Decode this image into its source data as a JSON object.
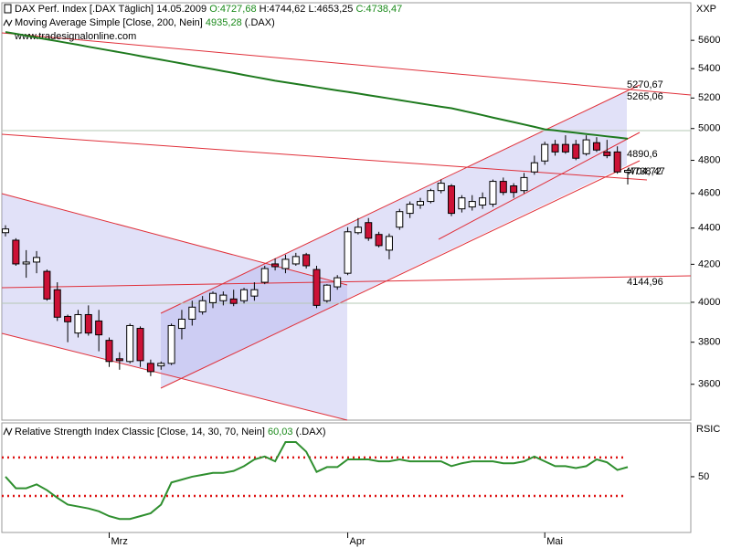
{
  "chart_data": [
    {
      "type": "candlestick",
      "title": "DAX Perf. Index [.DAX  Täglich] 14.05.2009",
      "ohlc_labels": [
        "O:4727,68",
        "H:4744,62",
        "L:4653,25",
        "C:4738,47"
      ],
      "source": "www.tradesignalonline.com",
      "axis_label": "XXP",
      "categories": [
        null,
        null,
        null,
        null,
        null,
        null,
        null,
        null,
        null,
        null,
        "Mrz",
        null,
        null,
        null,
        null,
        null,
        null,
        null,
        null,
        null,
        null,
        null,
        null,
        null,
        null,
        null,
        null,
        null,
        null,
        null,
        null,
        null,
        null,
        "Apr",
        null,
        null,
        null,
        null,
        null,
        null,
        null,
        null,
        null,
        null,
        null,
        null,
        null,
        null,
        null,
        null,
        null,
        null,
        "Mai",
        null,
        null,
        null,
        null,
        null,
        null,
        null,
        null
      ],
      "open": [
        4374,
        4332,
        4202,
        4212,
        4162,
        4065,
        3928,
        3845,
        3937,
        3905,
        3809,
        3720,
        3707,
        3868,
        3698,
        3686,
        3698,
        3868,
        3914,
        3951,
        3998,
        4008,
        4017,
        4008,
        4032,
        4104,
        4202,
        4177,
        4202,
        4252,
        4172,
        4008,
        4080,
        4152,
        4374,
        4431,
        4364,
        4277,
        4405,
        4484,
        4532,
        4553,
        4617,
        4645,
        4510,
        4521,
        4532,
        4537,
        4672,
        4645,
        4617,
        4729,
        4796,
        4899,
        4899,
        4899,
        4841,
        4910,
        4852,
        4852,
        4727.68
      ],
      "high": [
        4416,
        4343,
        4277,
        4272,
        4172,
        4104,
        3937,
        3961,
        3984,
        3961,
        3823,
        3751,
        3892,
        3878,
        3716,
        3707,
        3892,
        3961,
        4008,
        4032,
        4056,
        4056,
        4065,
        4075,
        4104,
        4192,
        4232,
        4252,
        4262,
        4262,
        4192,
        4094,
        4142,
        4405,
        4457,
        4457,
        4379,
        4369,
        4510,
        4553,
        4574,
        4628,
        4683,
        4656,
        4590,
        4590,
        4606,
        4683,
        4695,
        4661,
        4723,
        4829,
        4916,
        4928,
        4957,
        4928,
        4957,
        4945,
        4928,
        4887,
        4744.62
      ],
      "low": [
        4353,
        4192,
        4128,
        4152,
        4008,
        3905,
        3800,
        3823,
        3832,
        3756,
        3681,
        3668,
        3698,
        3681,
        3638,
        3668,
        3690,
        3814,
        3882,
        3937,
        3970,
        3984,
        3980,
        3994,
        4008,
        4094,
        4167,
        4152,
        4192,
        4177,
        3970,
        3998,
        4065,
        4142,
        4364,
        4328,
        4292,
        4227,
        4390,
        4457,
        4510,
        4542,
        4601,
        4468,
        4489,
        4500,
        4510,
        4521,
        4590,
        4574,
        4601,
        4712,
        4773,
        4829,
        4841,
        4801,
        4829,
        4852,
        4813,
        4718,
        4653.25
      ],
      "close": [
        4395,
        4202,
        4212,
        4237,
        4017,
        3924,
        3901,
        3937,
        3845,
        3836,
        3707,
        3711,
        3882,
        3711,
        3659,
        3698,
        3882,
        3914,
        3975,
        4008,
        4046,
        4037,
        3994,
        4065,
        4065,
        4177,
        4187,
        4227,
        4242,
        4192,
        3984,
        4089,
        4128,
        4379,
        4405,
        4343,
        4302,
        4353,
        4494,
        4537,
        4553,
        4617,
        4661,
        4484,
        4574,
        4553,
        4574,
        4672,
        4606,
        4606,
        4695,
        4785,
        4899,
        4852,
        4852,
        4813,
        4928,
        4864,
        4829,
        4729,
        4738.47
      ],
      "up_color": "#ffffff",
      "down_color": "#cc1236",
      "series": [
        {
          "name": "Moving Average Simple [Close, 200, Nein]",
          "value_label": "4935,28",
          "suffix": "(.DAX)",
          "color": "#1e7a1e",
          "values": [
            5660,
            5647,
            5634,
            5620,
            5607,
            5594,
            5581,
            5568,
            5554,
            5541,
            5528,
            5515,
            5502,
            5488,
            5475,
            5462,
            5449,
            5436,
            5422,
            5409,
            5396,
            5383,
            5370,
            5356,
            5343,
            5330,
            5317,
            5306,
            5295,
            5284,
            5273,
            5262,
            5251,
            5241,
            5230,
            5219,
            5208,
            5197,
            5186,
            5175,
            5164,
            5153,
            5142,
            5132,
            5117,
            5102,
            5087,
            5071,
            5056,
            5041,
            5026,
            5011,
            4995,
            4988,
            4980,
            4973,
            4965,
            4958,
            4950,
            4943,
            4935.28
          ]
        }
      ],
      "annotations": [
        "5270,67",
        "5265,06",
        "4890,6",
        "4738,47",
        "4704,72",
        "4144,96"
      ],
      "log": true,
      "ylim": [
        3438,
        5877
      ],
      "yticks": [
        3600,
        3800,
        4000,
        4200,
        4400,
        4600,
        4800,
        5000,
        5200,
        5400,
        5600
      ]
    },
    {
      "type": "line",
      "title": "Relative Strength Index Classic [Close, 14, 30, 70, Nein]",
      "value_label": "60,03",
      "suffix": "(.DAX)",
      "axis_label": "RSIC",
      "color": "#2f8f2f",
      "values": [
        50,
        38,
        38,
        42,
        36,
        28,
        21,
        19,
        17,
        14,
        9,
        6,
        6,
        9,
        12,
        21,
        44,
        47,
        50,
        52,
        54,
        54,
        56,
        61,
        68,
        71,
        66,
        86,
        86,
        76,
        55,
        60,
        60,
        68,
        68,
        68,
        66,
        66,
        68,
        66,
        66,
        66,
        66,
        61,
        64,
        66,
        66,
        66,
        64,
        64,
        66,
        71,
        66,
        61,
        61,
        59,
        61,
        68,
        65,
        57,
        60.03
      ],
      "levels": [
        30,
        70
      ],
      "level_color": "#dd1111",
      "ylim": [
        -8,
        106
      ],
      "yticks": [
        50
      ]
    }
  ]
}
